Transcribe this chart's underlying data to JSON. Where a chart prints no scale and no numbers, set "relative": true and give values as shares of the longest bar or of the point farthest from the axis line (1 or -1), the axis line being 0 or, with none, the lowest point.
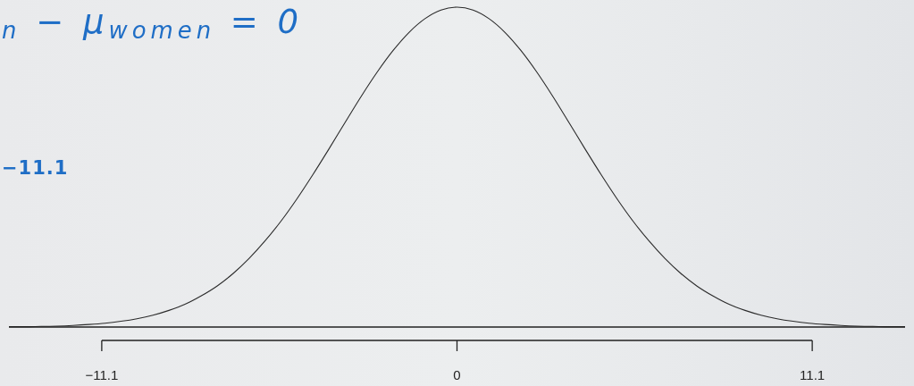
{
  "chart_data": {
    "type": "line",
    "relative": true,
    "x": [
      -14,
      -13.5,
      -13,
      -12.5,
      -12,
      -11.5,
      -11,
      -10.5,
      -10,
      -9.5,
      -9,
      -8.5,
      -8,
      -7.5,
      -7,
      -6.5,
      -6,
      -5.5,
      -5,
      -4.5,
      -4,
      -3.5,
      -3,
      -2.5,
      -2,
      -1.5,
      -1,
      -0.5,
      0,
      0.5,
      1,
      1.5,
      2,
      2.5,
      3,
      3.5,
      4,
      4.5,
      5,
      5.5,
      6,
      6.5,
      7,
      7.5,
      8,
      8.5,
      9,
      9.5,
      10,
      10.5,
      11,
      11.5,
      12,
      12.5,
      13,
      13.5,
      14
    ],
    "values": [
      0.001,
      0.001,
      0.002,
      0.003,
      0.005,
      0.008,
      0.012,
      0.018,
      0.026,
      0.037,
      0.052,
      0.071,
      0.097,
      0.128,
      0.167,
      0.214,
      0.269,
      0.331,
      0.401,
      0.477,
      0.557,
      0.639,
      0.72,
      0.796,
      0.864,
      0.921,
      0.964,
      0.991,
      1,
      0.991,
      0.964,
      0.921,
      0.864,
      0.796,
      0.72,
      0.639,
      0.557,
      0.477,
      0.401,
      0.331,
      0.269,
      0.214,
      0.167,
      0.128,
      0.097,
      0.071,
      0.052,
      0.037,
      0.026,
      0.018,
      0.012,
      0.008,
      0.005,
      0.003,
      0.002,
      0.001,
      0.001
    ],
    "color": "#2b2b2b",
    "xlim": [
      -14,
      14
    ],
    "xticks": [
      {
        "value": -11.1,
        "label": "−11.1"
      },
      0,
      11.1
    ],
    "annotations": [
      "$_{n}$ − μ$_{women}$ = 0",
      "−11.1"
    ]
  }
}
